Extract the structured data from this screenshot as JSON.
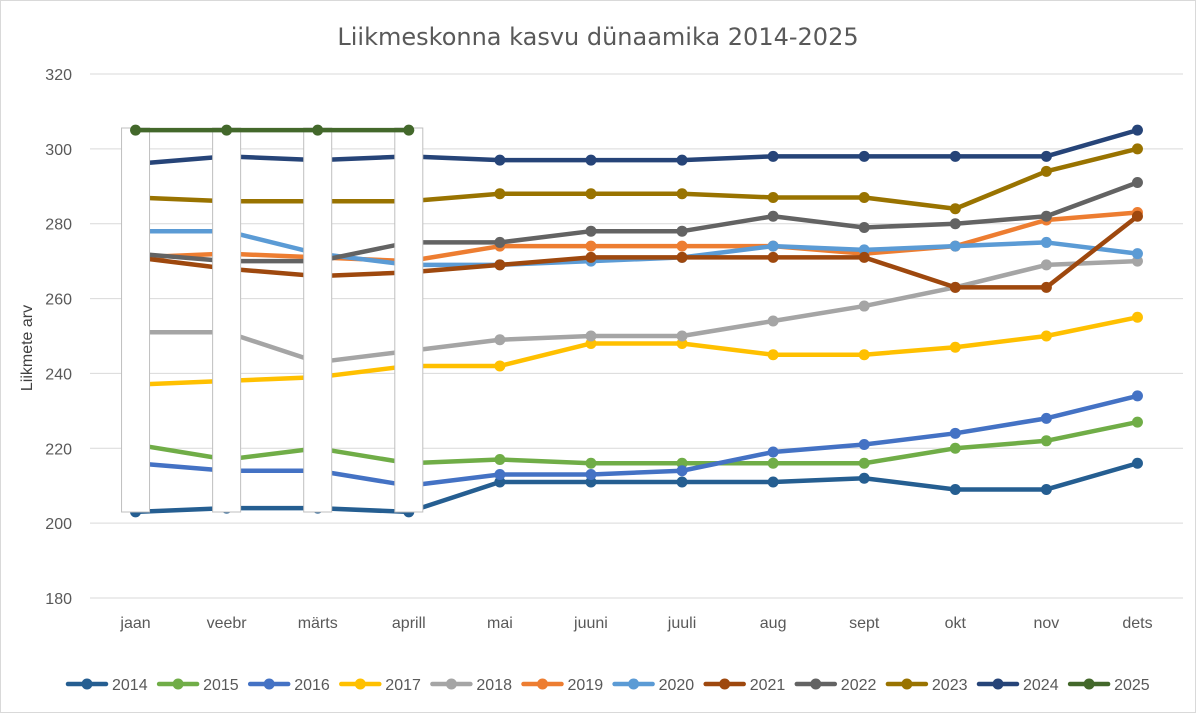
{
  "chart_data": {
    "type": "line",
    "title": "Liikmeskonna kasvu dünaamika 2014-2025",
    "ylabel": "Liikmete arv",
    "xlabel": "",
    "ylim": [
      180,
      320
    ],
    "yticks": [
      180,
      200,
      220,
      240,
      260,
      280,
      300,
      320
    ],
    "categories": [
      "jaan",
      "veebr",
      "märts",
      "aprill",
      "mai",
      "juuni",
      "juuli",
      "aug",
      "sept",
      "okt",
      "nov",
      "dets"
    ],
    "grid": true,
    "legend_position": "bottom",
    "series": [
      {
        "name": "2014",
        "color": "#255e91",
        "values": [
          203,
          204,
          204,
          203,
          211,
          211,
          211,
          211,
          212,
          209,
          209,
          216
        ]
      },
      {
        "name": "2015",
        "color": "#70ad47",
        "values": [
          221,
          217,
          220,
          216,
          217,
          216,
          216,
          216,
          216,
          220,
          222,
          227
        ]
      },
      {
        "name": "2016",
        "color": "#4472c4",
        "values": [
          216,
          214,
          214,
          210,
          213,
          213,
          214,
          219,
          221,
          224,
          228,
          234
        ]
      },
      {
        "name": "2017",
        "color": "#ffc000",
        "values": [
          237,
          238,
          239,
          242,
          242,
          248,
          248,
          245,
          245,
          247,
          250,
          255
        ]
      },
      {
        "name": "2018",
        "color": "#a5a5a5",
        "values": [
          251,
          251,
          243,
          246,
          249,
          250,
          250,
          254,
          258,
          263,
          269,
          270
        ]
      },
      {
        "name": "2019",
        "color": "#ed7d31",
        "values": [
          271,
          272,
          271,
          270,
          274,
          274,
          274,
          274,
          272,
          274,
          281,
          283
        ]
      },
      {
        "name": "2020",
        "color": "#5b9bd5",
        "values": [
          278,
          278,
          272,
          269,
          269,
          270,
          271,
          274,
          273,
          274,
          275,
          272
        ]
      },
      {
        "name": "2021",
        "color": "#9e480e",
        "values": [
          271,
          268,
          266,
          267,
          269,
          271,
          271,
          271,
          271,
          263,
          263,
          282
        ]
      },
      {
        "name": "2022",
        "color": "#636363",
        "values": [
          272,
          270,
          270,
          275,
          275,
          278,
          278,
          282,
          279,
          280,
          282,
          291
        ]
      },
      {
        "name": "2023",
        "color": "#997300",
        "values": [
          287,
          286,
          286,
          286,
          288,
          288,
          288,
          287,
          287,
          284,
          294,
          300
        ]
      },
      {
        "name": "2024",
        "color": "#264478",
        "values": [
          296,
          298,
          297,
          298,
          297,
          297,
          297,
          298,
          298,
          298,
          298,
          305
        ]
      },
      {
        "name": "2025",
        "color": "#43682b",
        "values": [
          305,
          305,
          305,
          305,
          null,
          null,
          null,
          null,
          null,
          null,
          null,
          null
        ]
      }
    ],
    "overlay_months": [
      "jaan",
      "veebr",
      "märts",
      "aprill"
    ]
  }
}
